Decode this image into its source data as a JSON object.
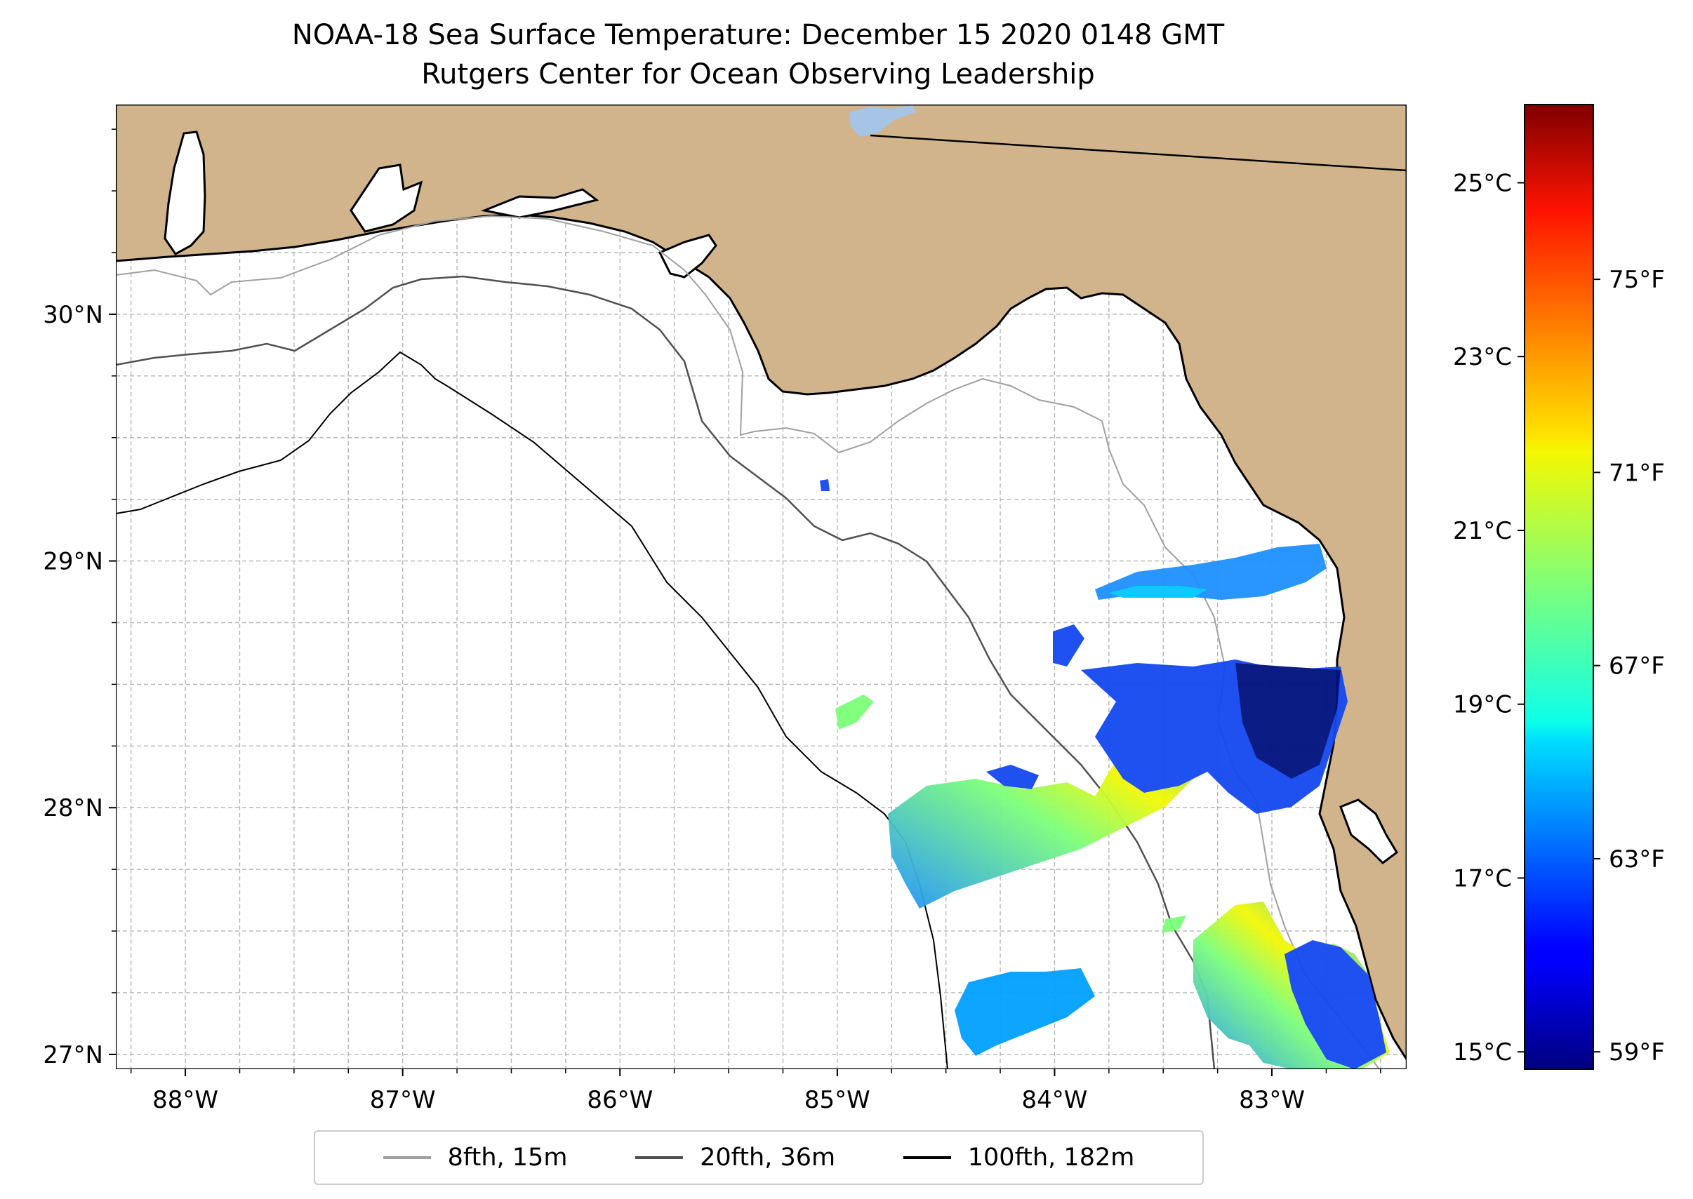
{
  "title": {
    "line1": "NOAA-18 Sea Surface Temperature: December 15 2020 0148 GMT",
    "line2": "Rutgers Center for Ocean Observing Leadership"
  },
  "map": {
    "lon_range": [
      -88.32,
      -82.38
    ],
    "lat_range": [
      26.94,
      30.85
    ],
    "lat_ticks": [
      {
        "value": 27,
        "label": "27°N"
      },
      {
        "value": 28,
        "label": "28°N"
      },
      {
        "value": 29,
        "label": "29°N"
      },
      {
        "value": 30,
        "label": "30°N"
      }
    ],
    "lon_ticks": [
      {
        "value": -88,
        "label": "88°W"
      },
      {
        "value": -87,
        "label": "87°W"
      },
      {
        "value": -86,
        "label": "86°W"
      },
      {
        "value": -85,
        "label": "85°W"
      },
      {
        "value": -84,
        "label": "84°W"
      },
      {
        "value": -83,
        "label": "83°W"
      }
    ],
    "gridlines": "dashed, every 0.25°",
    "land_color": "#d2b48c",
    "ocean_color": "#ffffff"
  },
  "colorbar": {
    "colormap": "jet",
    "range_c": [
      14.8,
      25.9
    ],
    "celsius_ticks": [
      {
        "value": 15,
        "label": "15°C"
      },
      {
        "value": 17,
        "label": "17°C"
      },
      {
        "value": 19,
        "label": "19°C"
      },
      {
        "value": 21,
        "label": "21°C"
      },
      {
        "value": 23,
        "label": "23°C"
      },
      {
        "value": 25,
        "label": "25°C"
      }
    ],
    "fahrenheit_ticks": [
      {
        "value": 59,
        "label": "59°F"
      },
      {
        "value": 63,
        "label": "63°F"
      },
      {
        "value": 67,
        "label": "67°F"
      },
      {
        "value": 71,
        "label": "71°F"
      },
      {
        "value": 75,
        "label": "75°F"
      }
    ]
  },
  "legend": {
    "items": [
      {
        "label": "8fth, 15m",
        "color": "#a0a0a0"
      },
      {
        "label": "20fth, 36m",
        "color": "#505050"
      },
      {
        "label": "100fth, 182m",
        "color": "#000000"
      }
    ]
  }
}
